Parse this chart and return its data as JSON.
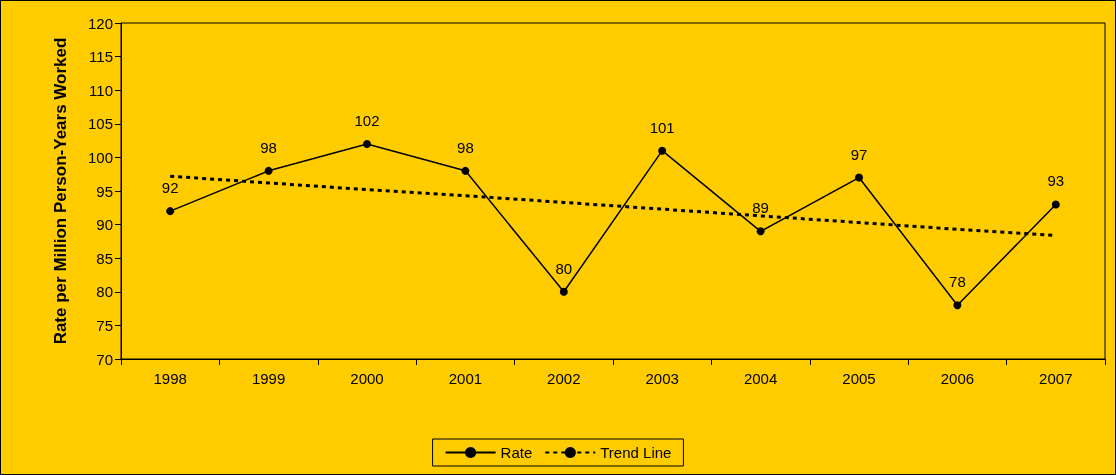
{
  "chart_data": {
    "type": "line",
    "ylabel": "Rate per Million Person-Years Worked",
    "categories": [
      "1998",
      "1999",
      "2000",
      "2001",
      "2002",
      "2003",
      "2004",
      "2005",
      "2006",
      "2007"
    ],
    "series": [
      {
        "name": "Rate",
        "color": "#000000",
        "values": [
          92,
          98,
          102,
          98,
          80,
          101,
          89,
          97,
          78,
          93
        ],
        "marker": "circle",
        "line_style": "solid",
        "data_labels": true
      },
      {
        "name": "Trend Line",
        "color": "#000000",
        "values": [
          97.2,
          96.2,
          95.2,
          94.3,
          93.3,
          92.3,
          91.3,
          90.3,
          89.3,
          88.4
        ],
        "marker": "none",
        "line_style": "dashed"
      }
    ],
    "ylim": [
      70,
      120
    ],
    "yticks": [
      70,
      75,
      80,
      85,
      90,
      95,
      100,
      105,
      110,
      115,
      120
    ],
    "grid": false,
    "legend": "bottom"
  }
}
